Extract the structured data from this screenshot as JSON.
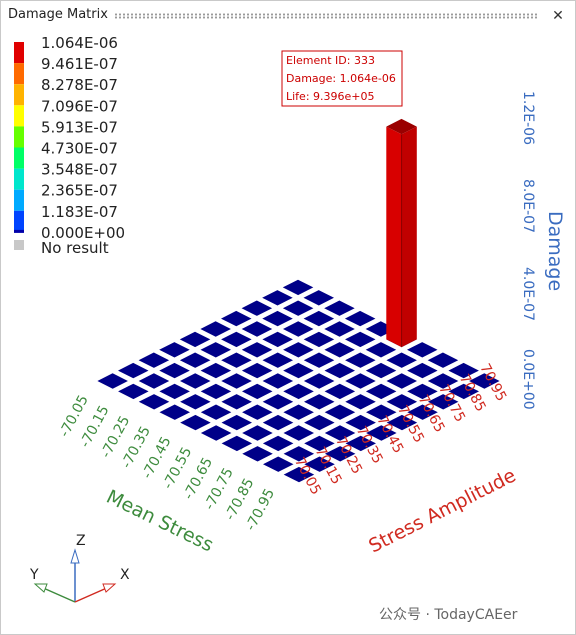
{
  "window": {
    "title": "Damage Matrix"
  },
  "legend": {
    "levels": [
      {
        "label": "1.064E-06",
        "color": "#e00000"
      },
      {
        "label": "9.461E-07",
        "color": "#ff6a00"
      },
      {
        "label": "8.278E-07",
        "color": "#ffb300"
      },
      {
        "label": "7.096E-07",
        "color": "#ffff00"
      },
      {
        "label": "5.913E-07",
        "color": "#66ff00"
      },
      {
        "label": "4.730E-07",
        "color": "#00ff66"
      },
      {
        "label": "3.548E-07",
        "color": "#00e6cc"
      },
      {
        "label": "2.365E-07",
        "color": "#00aaff"
      },
      {
        "label": "1.183E-07",
        "color": "#0044ff"
      },
      {
        "label": "0.000E+00",
        "color": "#0000aa"
      }
    ],
    "no_result": "No result",
    "no_result_color": "#c8c8c8"
  },
  "tooltip": {
    "lines": [
      "Element ID: 333",
      "Damage: 1.064e-06",
      "Life: 9.396e+05"
    ]
  },
  "chart_data": {
    "type": "bar3d",
    "x_axis": {
      "title": "Mean Stress",
      "ticks": [
        "-70.05",
        "-70.15",
        "-70.25",
        "-70.35",
        "-70.45",
        "-70.55",
        "-70.65",
        "-70.75",
        "-70.85",
        "-70.95"
      ]
    },
    "y_axis": {
      "title": "Stress Amplitude",
      "ticks": [
        "70.05",
        "70.15",
        "70.25",
        "70.35",
        "70.45",
        "70.55",
        "70.65",
        "70.75",
        "70.85",
        "70.95"
      ]
    },
    "z_axis": {
      "title": "Damage",
      "ticks": [
        "0.0E+00",
        "4.0E-07",
        "8.0E-07",
        "1.2E-06"
      ],
      "range": [
        0,
        1.2e-06
      ]
    },
    "peak_bin": {
      "mean_stress": "-70.55",
      "stress_amplitude": "70.95",
      "value": 1.064e-06
    },
    "other_bins_value": 0
  },
  "triad": {
    "z": "Z",
    "y": "Y",
    "x": "X"
  },
  "colors": {
    "bar": "#e00000",
    "cell": "#000088",
    "mean_axis": "#3d8b3d",
    "amp_axis": "#d02a20",
    "damage_axis": "#3a6cc0"
  },
  "watermark": "公众号 · TodayCAEer"
}
